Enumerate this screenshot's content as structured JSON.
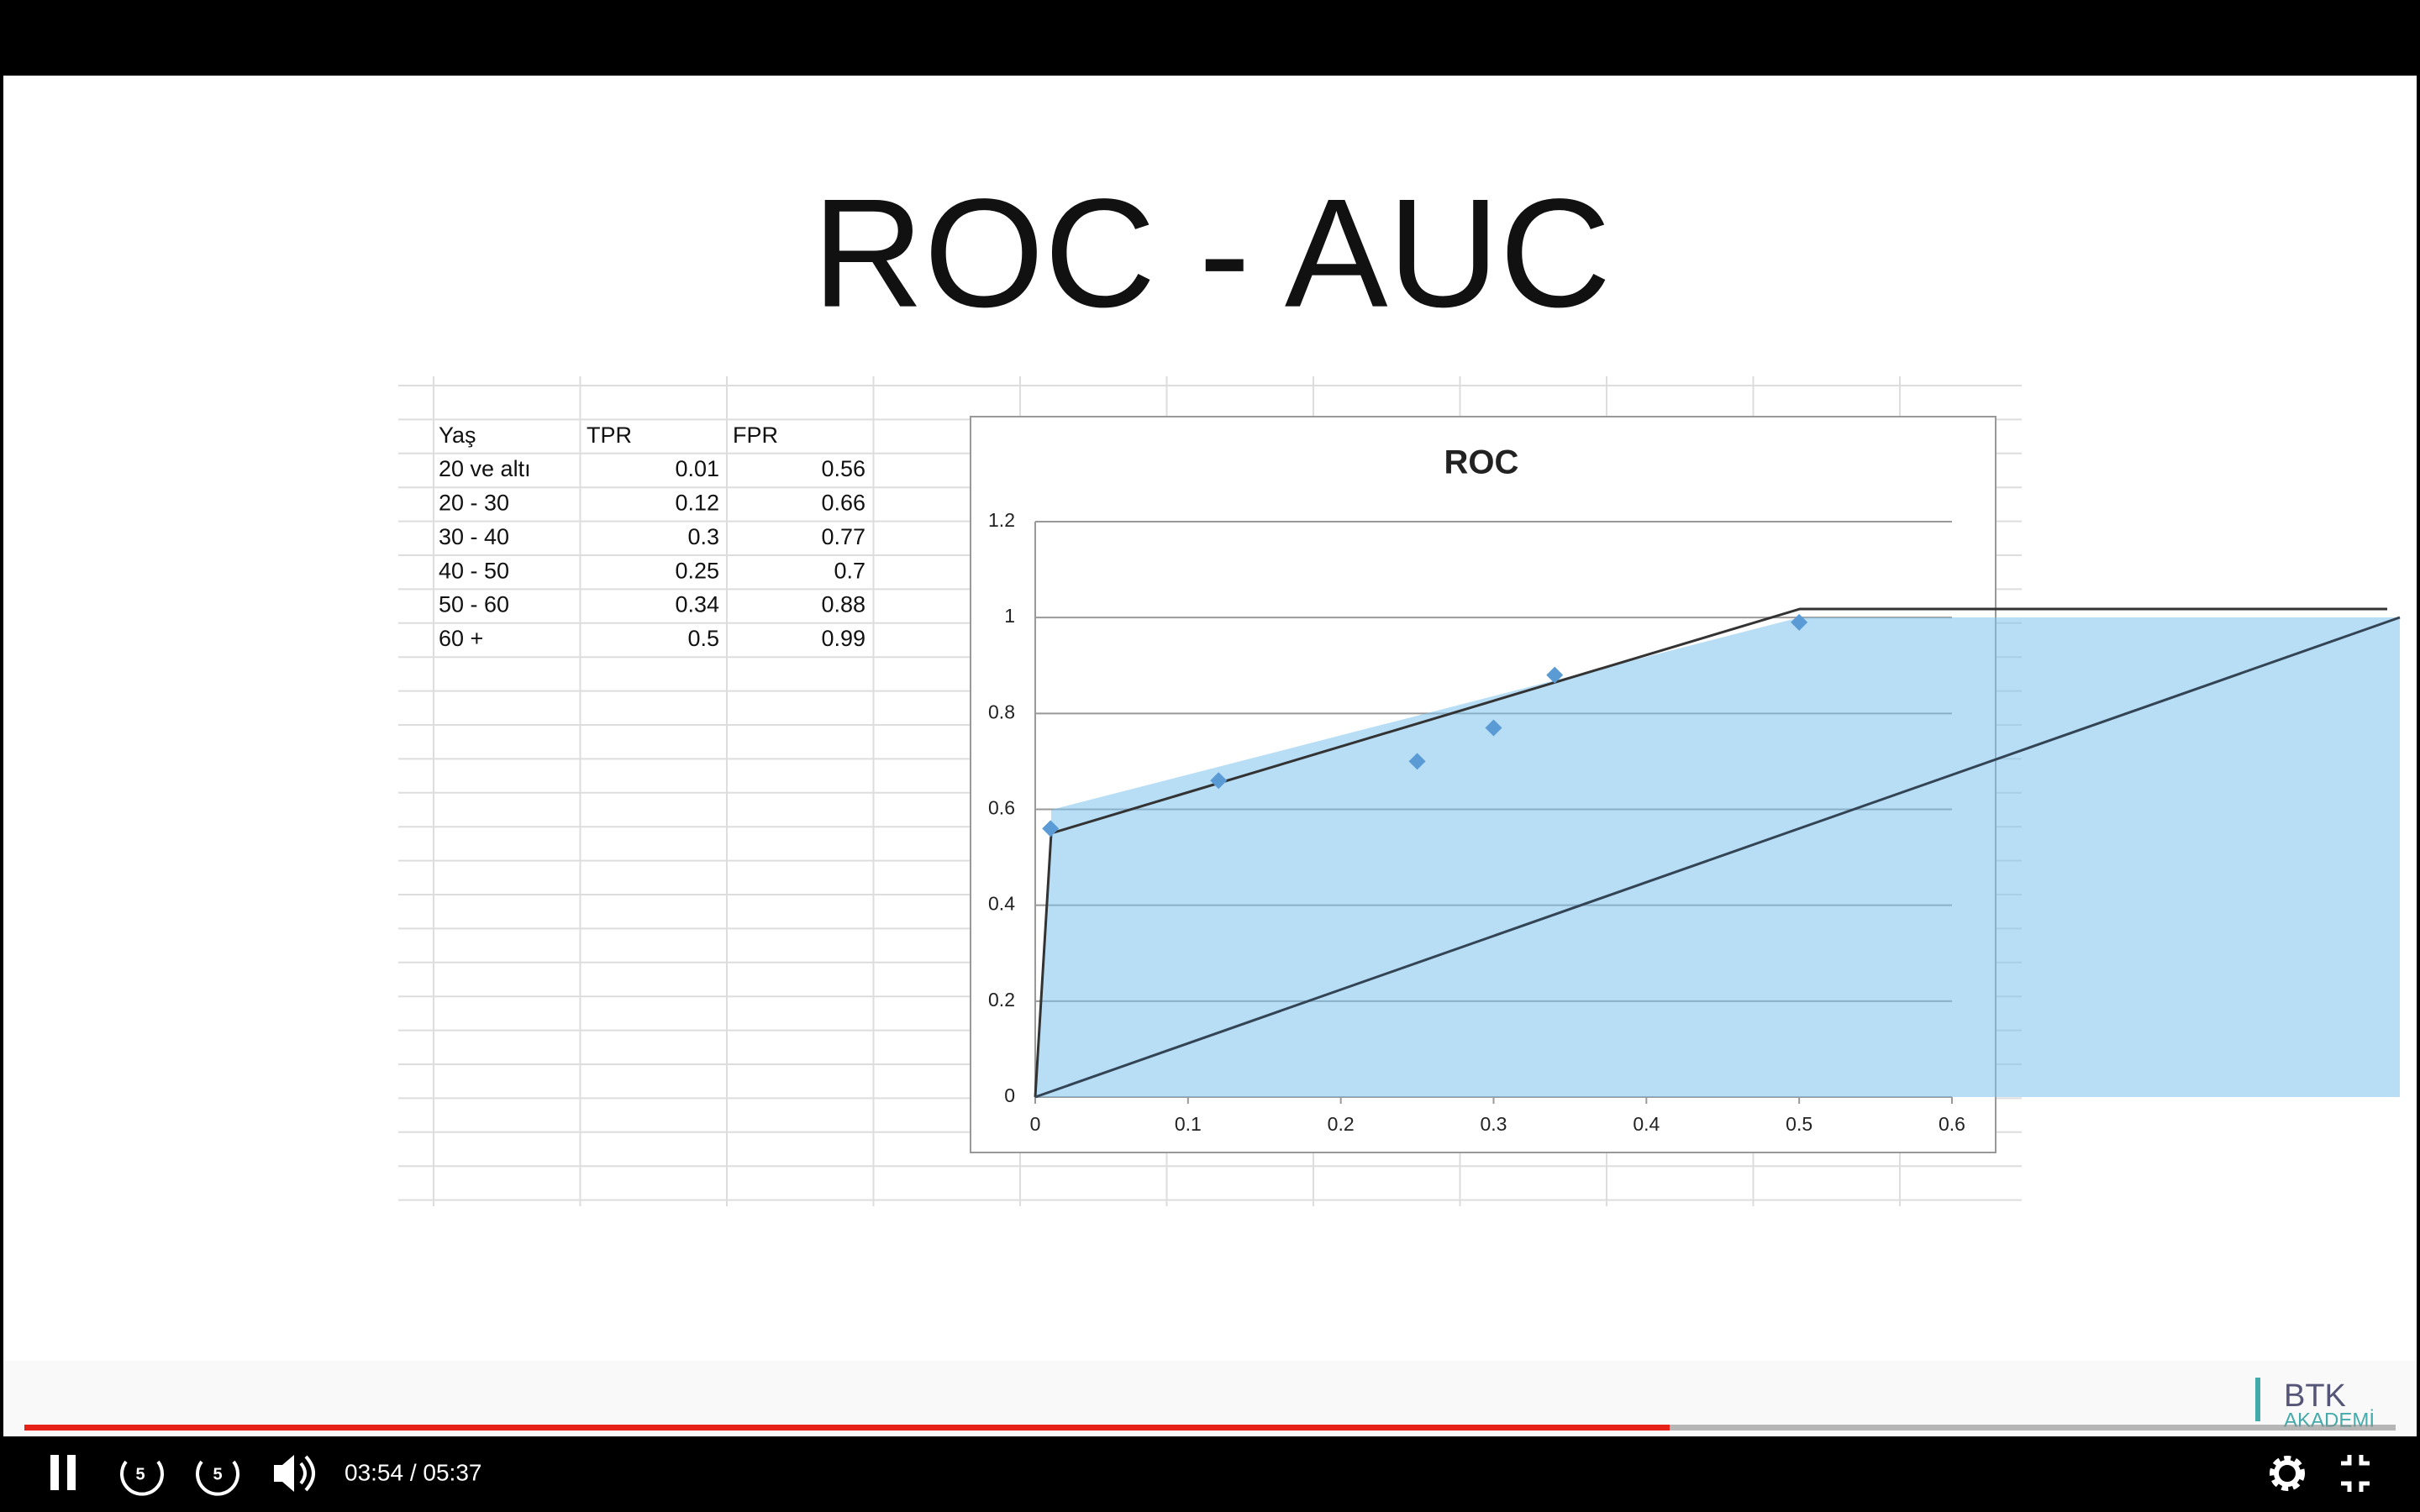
{
  "slide": {
    "title": "ROC - AUC"
  },
  "table": {
    "header": [
      "Yaş",
      "TPR",
      "FPR"
    ],
    "rows": [
      [
        "20 ve altı",
        0.01,
        0.56
      ],
      [
        "20 - 30",
        0.12,
        0.66
      ],
      [
        "30 - 40",
        0.3,
        0.77
      ],
      [
        "40 - 50",
        0.25,
        0.7
      ],
      [
        "50 - 60",
        0.34,
        0.88
      ],
      [
        "60 +",
        0.5,
        0.99
      ]
    ]
  },
  "chart_data": {
    "type": "scatter",
    "title": "ROC",
    "x": [
      0.01,
      0.12,
      0.3,
      0.25,
      0.34,
      0.5
    ],
    "series": [
      {
        "color": "#5b9bd5",
        "values": [
          0.56,
          0.66,
          0.77,
          0.7,
          0.88,
          0.99
        ]
      }
    ],
    "xlim": [
      0,
      0.6
    ],
    "ylim": [
      0,
      1.2
    ],
    "xticks": [
      0,
      0.1,
      0.2,
      0.3,
      0.4,
      0.5,
      0.6
    ],
    "yticks": [
      0,
      0.2,
      0.4,
      0.6,
      0.8,
      1,
      1.2
    ],
    "grid": true
  },
  "player": {
    "skip": 5,
    "time": "03:54 / 05:37",
    "logo": [
      "BTK",
      "AKADEMİ"
    ]
  }
}
